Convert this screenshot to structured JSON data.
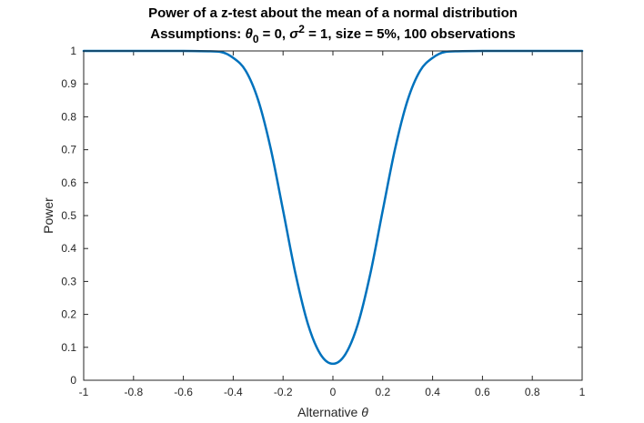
{
  "chart_data": {
    "type": "line",
    "title": "Power of a z-test about the mean of a normal distribution",
    "subtitle": {
      "prefix": "Assumptions: ",
      "theta_symbol": "θ",
      "theta_subscript": "0",
      "theta_text": " = 0, ",
      "sigma_symbol": "σ",
      "sigma_superscript": "2",
      "rest": " = 1, size = 5%, 100 observations"
    },
    "xlabel": {
      "text": "Alternative ",
      "symbol": "θ"
    },
    "ylabel": "Power",
    "xlim": [
      -1,
      1
    ],
    "ylim": [
      0,
      1
    ],
    "xticks": [
      -1,
      -0.8,
      -0.6,
      -0.4,
      -0.2,
      0,
      0.2,
      0.4,
      0.6,
      0.8,
      1
    ],
    "xtick_labels": [
      "-1",
      "-0.8",
      "-0.6",
      "-0.4",
      "-0.2",
      "0",
      "0.2",
      "0.4",
      "0.6",
      "0.8",
      "1"
    ],
    "yticks": [
      0,
      0.1,
      0.2,
      0.3,
      0.4,
      0.5,
      0.6,
      0.7,
      0.8,
      0.9,
      1
    ],
    "ytick_labels": [
      "0",
      "0.1",
      "0.2",
      "0.3",
      "0.4",
      "0.5",
      "0.6",
      "0.7",
      "0.8",
      "0.9",
      "1"
    ],
    "grid": false,
    "line_color": "#0072BD",
    "series": [
      {
        "x": [
          -1,
          -0.8,
          -0.6,
          -0.5,
          -0.45,
          -0.4,
          -0.35,
          -0.3,
          -0.25,
          -0.2,
          -0.15,
          -0.1,
          -0.05,
          0,
          0.05,
          0.1,
          0.15,
          0.2,
          0.25,
          0.3,
          0.35,
          0.4,
          0.45,
          0.5,
          0.6,
          0.8,
          1
        ],
        "values": [
          1,
          1,
          1,
          0.999,
          0.997,
          0.979,
          0.94,
          0.851,
          0.705,
          0.516,
          0.323,
          0.17,
          0.079,
          0.05,
          0.079,
          0.17,
          0.323,
          0.516,
          0.705,
          0.851,
          0.94,
          0.979,
          0.997,
          0.999,
          1,
          1,
          1
        ]
      }
    ]
  }
}
